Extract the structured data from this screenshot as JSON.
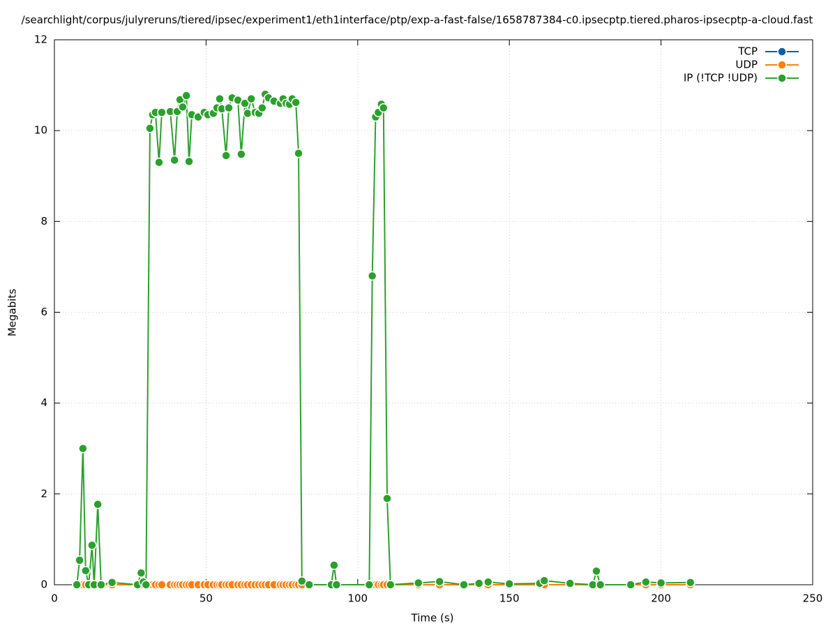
{
  "chart_data": {
    "type": "line",
    "title": "/searchlight/corpus/julyreruns/tiered/ipsec/experiment1/eth1interface/ptp/exp-a-fast-false/1658787384-c0.ipsecptp.tiered.pharos-ipsecptp-a-cloud.fast",
    "x_label": "Time (s)",
    "y_label": "Megabits",
    "x": [
      7.4,
      8.3,
      9.4,
      10.3,
      11.3,
      12.4,
      13.1,
      14.3,
      15.4,
      19,
      27.4,
      28.6,
      29.3,
      30.2,
      31.5,
      32.4,
      33.3,
      34.5,
      35.4,
      38.2,
      39.6,
      40.5,
      41.4,
      42.3,
      43.5,
      44.4,
      45.3,
      47.4,
      49.4,
      50.6,
      52.4,
      53.6,
      54.5,
      55.2,
      56.6,
      57.5,
      58.6,
      60.5,
      61.6,
      62.8,
      63.7,
      64.9,
      66.2,
      67.4,
      68.5,
      69.5,
      70.6,
      72.4,
      74.5,
      75.4,
      76.4,
      77.5,
      78.4,
      79.6,
      80.5,
      81.6,
      84,
      91.3,
      92.2,
      93,
      103.8,
      104.8,
      105.9,
      106.8,
      107.8,
      108.5,
      109.7,
      110.8,
      120,
      127,
      135,
      140,
      143,
      150,
      160,
      161.5,
      170,
      177.5,
      178.7,
      180,
      190,
      195,
      200,
      209.7
    ],
    "series": [
      {
        "name": "TCP",
        "color": "#0060ad",
        "values": [
          0,
          0,
          0,
          0,
          0,
          0,
          0,
          0,
          0,
          0,
          0,
          0,
          0,
          0,
          0,
          0,
          0,
          0,
          0,
          0,
          0,
          0,
          0,
          0,
          0,
          0,
          0,
          0,
          0,
          0,
          0,
          0,
          0,
          0,
          0,
          0,
          0,
          0,
          0,
          0,
          0,
          0,
          0,
          0,
          0,
          0,
          0,
          0,
          0,
          0,
          0,
          0,
          0,
          0,
          0,
          0,
          0,
          0,
          0,
          0,
          0,
          0,
          0,
          0,
          0,
          0,
          0,
          0,
          0,
          0,
          0,
          0,
          0,
          0,
          0,
          0,
          0,
          0,
          0,
          0,
          0,
          0,
          0,
          0
        ]
      },
      {
        "name": "UDP",
        "color": "#ff7f0e",
        "values": [
          0,
          0,
          0,
          0,
          0,
          0,
          0,
          0,
          0,
          0,
          0,
          0,
          0,
          0,
          0,
          0,
          0,
          0,
          0,
          0,
          0,
          0,
          0,
          0,
          0,
          0,
          0,
          0,
          0,
          0,
          0,
          0,
          0,
          0,
          0,
          0,
          0,
          0,
          0,
          0,
          0,
          0,
          0,
          0,
          0,
          0,
          0,
          0,
          0,
          0,
          0,
          0,
          0,
          0,
          0,
          0,
          0,
          0,
          0,
          0,
          0,
          0,
          0,
          0,
          0,
          0,
          0,
          0,
          0,
          0,
          0,
          0,
          0,
          0,
          0,
          0,
          0,
          0,
          0,
          0,
          0,
          0,
          0,
          0
        ]
      },
      {
        "name": "IP (!TCP  !UDP)",
        "color": "#2ca02c",
        "values": [
          0,
          0.54,
          3.0,
          0.31,
          0,
          0.87,
          0,
          1.77,
          0,
          0.05,
          0,
          0.26,
          0.06,
          0,
          10.05,
          10.35,
          10.4,
          9.3,
          10.4,
          10.42,
          9.35,
          10.42,
          10.68,
          10.52,
          10.77,
          9.32,
          10.35,
          10.3,
          10.4,
          10.35,
          10.38,
          10.5,
          10.7,
          10.48,
          9.45,
          10.5,
          10.72,
          10.67,
          9.48,
          10.6,
          10.38,
          10.7,
          10.4,
          10.38,
          10.5,
          10.8,
          10.72,
          10.65,
          10.6,
          10.7,
          10.6,
          10.58,
          10.7,
          10.62,
          9.5,
          0.08,
          0,
          0,
          0.43,
          0,
          0,
          6.8,
          10.3,
          10.4,
          10.58,
          10.5,
          1.9,
          0,
          0.04,
          0.07,
          0,
          0.03,
          0.06,
          0.02,
          0.03,
          0.09,
          0.03,
          0,
          0.3,
          0,
          0,
          0.06,
          0.04,
          0.05
        ]
      }
    ],
    "xlim": [
      0,
      250
    ],
    "xticks": [
      0,
      50,
      100,
      150,
      200,
      250
    ],
    "ylim": [
      0,
      12
    ],
    "yticks": [
      0,
      2,
      4,
      6,
      8,
      10,
      12
    ],
    "grid": true,
    "legend": "top-right"
  }
}
